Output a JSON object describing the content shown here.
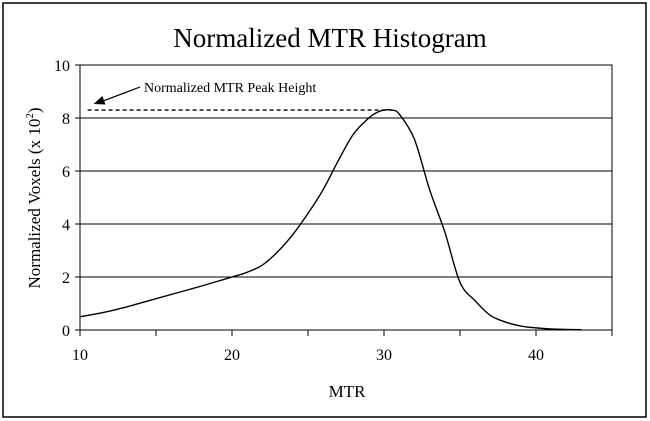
{
  "chart_data": {
    "type": "line",
    "title": "Normalized MTR Histogram",
    "xlabel": "MTR",
    "ylabel": "Normalized Voxels (x 10",
    "ylabel_exponent": "2",
    "ylabel_suffix": ")",
    "xlim": [
      10,
      45
    ],
    "ylim": [
      0,
      10
    ],
    "xticks": [
      10,
      20,
      30,
      40
    ],
    "yticks": [
      0,
      2,
      4,
      6,
      8,
      10
    ],
    "grid": "horizontal",
    "legend": "none",
    "annotation": {
      "text": "Normalized MTR Peak Height",
      "y": 8.3,
      "x_from": 10.5,
      "x_to": 30.5
    },
    "series": [
      {
        "x": [
          10,
          11,
          12,
          13,
          14,
          15,
          16,
          17,
          18,
          19,
          20,
          21,
          22,
          23,
          24,
          25,
          26,
          27,
          28,
          29,
          29.5,
          30,
          30.5,
          31,
          32,
          33,
          34,
          35,
          36,
          37,
          38,
          39,
          40,
          41,
          42,
          43
        ],
        "y": [
          0.5,
          0.6,
          0.72,
          0.86,
          1.02,
          1.18,
          1.34,
          1.5,
          1.66,
          1.83,
          2.0,
          2.18,
          2.45,
          2.95,
          3.6,
          4.4,
          5.3,
          6.4,
          7.4,
          8.0,
          8.2,
          8.3,
          8.3,
          8.15,
          7.2,
          5.3,
          3.7,
          1.8,
          1.1,
          0.55,
          0.3,
          0.15,
          0.08,
          0.04,
          0.02,
          0.01
        ]
      }
    ],
    "colors": {
      "line": "#000000",
      "grid": "#000000",
      "frame": "#000000"
    }
  }
}
